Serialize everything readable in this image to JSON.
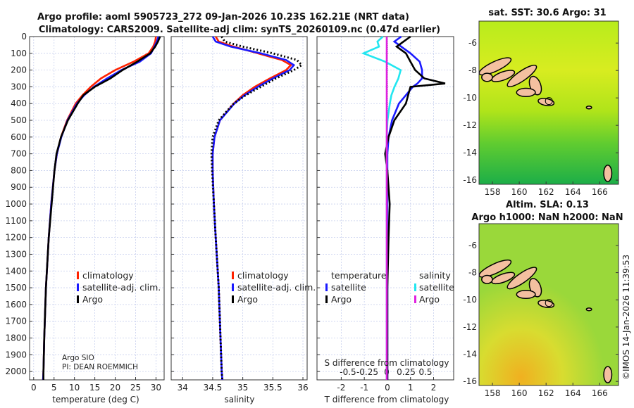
{
  "title_line1": "Argo profile: aoml 5905723_272 09-Jan-2026 10.23S 162.21E (NRT data)",
  "title_line2": "Climatology: CARS2009. Satellite-adj clim: synTS_20260109.nc (0.47d earlier)",
  "pi_line1": "Argo SIO",
  "pi_line2": "PI: DEAN ROEMMICH",
  "copyright": "©IMOS 14-Jan-2026 11:39:53",
  "colors": {
    "clim": "#ff2200",
    "sat": "#1a1aff",
    "argo": "#000000",
    "sal_sat": "#22e6f0",
    "sal_argo": "#e020e0"
  },
  "chart_data": [
    {
      "type": "line",
      "xlabel": "temperature (deg C)",
      "ylabel": "depth",
      "xlim": [
        -1,
        32
      ],
      "ylim": [
        0,
        2050
      ],
      "xticks": [
        0,
        5,
        10,
        15,
        20,
        25,
        30
      ],
      "yticks": [
        0,
        100,
        200,
        300,
        400,
        500,
        600,
        700,
        800,
        900,
        1000,
        1100,
        1200,
        1300,
        1400,
        1500,
        1600,
        1700,
        1800,
        1900,
        2000
      ],
      "legend": [
        "climatology",
        "satellite-adj. clim.",
        "Argo"
      ],
      "depth": [
        0,
        30,
        60,
        100,
        150,
        200,
        250,
        300,
        350,
        400,
        500,
        600,
        700,
        800,
        1000,
        1200,
        1500,
        1800,
        2000,
        2050
      ],
      "series": [
        {
          "name": "climatology",
          "values": [
            30,
            29.8,
            29.3,
            28.2,
            24.5,
            20,
            16.5,
            14,
            12,
            10.3,
            8.2,
            6.7,
            5.7,
            5.1,
            4.3,
            3.7,
            3.0,
            2.6,
            2.4,
            2.3
          ]
        },
        {
          "name": "satellite-adj. clim.",
          "values": [
            30.6,
            30.2,
            29.6,
            28.8,
            26.0,
            21.5,
            18,
            14.8,
            12.4,
            10.6,
            8.3,
            6.8,
            5.7,
            5.1,
            4.3,
            3.7,
            3.0,
            2.6,
            2.4,
            2.3
          ]
        },
        {
          "name": "Argo",
          "values": [
            31,
            30.5,
            29.8,
            28.6,
            25.4,
            21.8,
            18.8,
            15.0,
            12.2,
            10.8,
            8.4,
            6.7,
            5.6,
            5.1,
            4.4,
            3.7,
            3.0,
            2.6,
            2.4,
            2.4
          ]
        }
      ]
    },
    {
      "type": "line",
      "xlabel": "salinity",
      "xlim": [
        33.81,
        36.07
      ],
      "xticks": [
        34,
        34.5,
        35,
        35.5,
        36
      ],
      "legend": [
        "climatology",
        "satellite-adj. clim.",
        "Argo"
      ],
      "depth": [
        0,
        30,
        60,
        100,
        140,
        170,
        200,
        250,
        300,
        350,
        400,
        500,
        600,
        700,
        800,
        1000,
        1200,
        1500,
        1800,
        2000,
        2050
      ],
      "series": [
        {
          "name": "climatology",
          "values": [
            34.55,
            34.6,
            34.85,
            35.25,
            35.65,
            35.8,
            35.72,
            35.45,
            35.2,
            35.0,
            34.85,
            34.62,
            34.53,
            34.5,
            34.5,
            34.52,
            34.55,
            34.6,
            34.63,
            34.65,
            34.66
          ]
        },
        {
          "name": "satellite-adj. clim.",
          "values": [
            34.5,
            34.55,
            34.8,
            35.3,
            35.72,
            35.85,
            35.78,
            35.5,
            35.25,
            35.03,
            34.86,
            34.62,
            34.53,
            34.5,
            34.5,
            34.52,
            34.55,
            34.6,
            34.63,
            34.65,
            34.66
          ]
        },
        {
          "name": "Argo",
          "values": [
            34.65,
            34.7,
            35.0,
            35.5,
            35.9,
            35.98,
            35.85,
            35.55,
            35.3,
            35.05,
            34.85,
            34.6,
            34.5,
            34.48,
            34.49,
            34.52,
            34.55,
            34.6,
            34.63,
            34.65,
            34.66
          ]
        }
      ]
    },
    {
      "type": "line",
      "xlabel": "T difference from climatology",
      "x2label": "S difference from climatology",
      "xlim": [
        -3.05,
        2.87
      ],
      "x2lim": [
        -0.5,
        0.5
      ],
      "xticks": [
        -2,
        -1,
        0,
        1,
        2
      ],
      "x2ticks": [
        -0.5,
        -0.25,
        0,
        0.25,
        0.5
      ],
      "legend_titles": [
        "temperature",
        "salinity"
      ],
      "legend": [
        "satellite",
        "Argo",
        "satellite",
        "Argo"
      ],
      "depth": [
        0,
        30,
        60,
        100,
        150,
        200,
        250,
        280,
        300,
        350,
        400,
        500,
        600,
        700,
        800,
        1000,
        1200,
        1500,
        1800,
        2000,
        2050
      ],
      "series": [
        {
          "name": "T satellite",
          "values": [
            0.6,
            0.3,
            0.6,
            1.0,
            1.4,
            1.5,
            1.5,
            1.3,
            1.1,
            0.8,
            0.5,
            0.2,
            0.05,
            0,
            0,
            0,
            0,
            0,
            0,
            0,
            0
          ]
        },
        {
          "name": "T Argo",
          "values": [
            1.0,
            0.7,
            0.4,
            0.8,
            1.0,
            1.2,
            1.6,
            2.5,
            1.0,
            0.9,
            0.8,
            0.3,
            0.05,
            -0.1,
            0,
            0.1,
            0.05,
            0,
            0,
            0,
            0
          ]
        },
        {
          "name": "S satellite",
          "values": [
            -0.05,
            -0.12,
            -0.1,
            -0.3,
            -0.02,
            0.18,
            0.15,
            0.12,
            0.1,
            0.06,
            0.04,
            0.01,
            0,
            0,
            0,
            0,
            0,
            0,
            0,
            0,
            0
          ]
        },
        {
          "name": "S Argo",
          "values": [
            0,
            0,
            0,
            0,
            0,
            0,
            0,
            0,
            0,
            0,
            0,
            0,
            0,
            0,
            0,
            0,
            0,
            0,
            0,
            0,
            0
          ]
        }
      ]
    },
    {
      "type": "heatmap",
      "title": "sat. SST: 30.6 Argo: 31",
      "xlim": [
        157,
        167.4
      ],
      "ylim": [
        -16.3,
        -4.4
      ],
      "xticks": [
        158,
        160,
        162,
        164,
        166
      ],
      "yticks": [
        -6,
        -8,
        -10,
        -12,
        -14,
        -16
      ]
    },
    {
      "type": "heatmap",
      "title_line1": "Altim. SLA: 0.13",
      "title_line2": "Argo h1000: NaN h2000: NaN",
      "xlim": [
        157,
        167.4
      ],
      "ylim": [
        -16.3,
        -4.4
      ],
      "xticks": [
        158,
        160,
        162,
        164,
        166
      ],
      "yticks": [
        -6,
        -8,
        -10,
        -12,
        -14,
        -16
      ]
    }
  ]
}
